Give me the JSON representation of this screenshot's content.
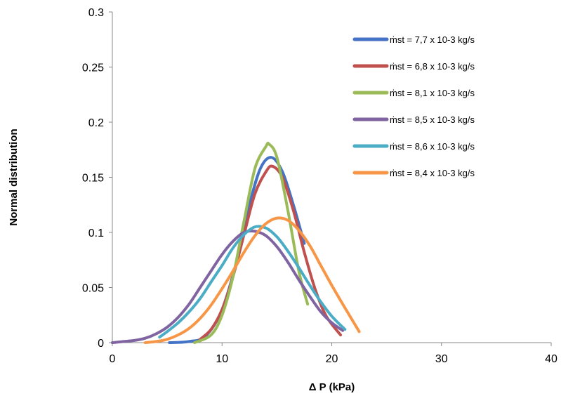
{
  "chart_data": {
    "type": "line",
    "title": "",
    "xlabel": "Δ P (kPa)",
    "ylabel": "Normal   distribution",
    "xlim": [
      0,
      40
    ],
    "ylim": [
      0,
      0.3
    ],
    "x_ticks": [
      "0",
      "10",
      "20",
      "30",
      "40"
    ],
    "y_ticks": [
      "0",
      "0.05",
      "0.1",
      "0.15",
      "0.2",
      "0.25",
      "0.3"
    ],
    "grid": false,
    "legend_position": "top-right",
    "series": [
      {
        "name": "ṁst  = 7,7 x 10-3 kg/s",
        "color": "#4472c4",
        "x": [
          5.2,
          7,
          8.5,
          10,
          11.5,
          12.5,
          13.5,
          14.5,
          15.5,
          16.5,
          17.5
        ],
        "y": [
          0,
          0.001,
          0.006,
          0.03,
          0.08,
          0.125,
          0.158,
          0.168,
          0.155,
          0.125,
          0.09
        ]
      },
      {
        "name": "ṁst  = 6,8 x 10-3 kg/s",
        "color": "#c0504d",
        "x": [
          8,
          9,
          10,
          11,
          12,
          13,
          14,
          14.6,
          15.5,
          16.5,
          17.5,
          18.5,
          19.5,
          20.8
        ],
        "y": [
          0.003,
          0.012,
          0.03,
          0.06,
          0.098,
          0.135,
          0.155,
          0.16,
          0.15,
          0.12,
          0.082,
          0.048,
          0.024,
          0.007
        ]
      },
      {
        "name": "ṁst  = 8,1 x 10-3 kg/s",
        "color": "#9bbb59",
        "x": [
          7.5,
          9,
          10,
          11,
          12,
          13,
          14,
          14.3,
          15,
          16,
          17,
          17.8
        ],
        "y": [
          0,
          0.007,
          0.025,
          0.06,
          0.11,
          0.158,
          0.178,
          0.18,
          0.168,
          0.12,
          0.065,
          0.035
        ]
      },
      {
        "name": "ṁst  = 8,5 x 10-3 kg/s",
        "color": "#8064a2",
        "x": [
          0,
          1,
          2,
          3,
          4,
          5,
          6,
          7,
          8,
          9,
          10,
          11,
          12,
          13,
          14,
          15,
          16,
          17,
          18,
          19,
          20,
          21
        ],
        "y": [
          0,
          0.001,
          0.002,
          0.004,
          0.008,
          0.014,
          0.023,
          0.035,
          0.05,
          0.065,
          0.08,
          0.092,
          0.1,
          0.101,
          0.097,
          0.087,
          0.073,
          0.057,
          0.042,
          0.028,
          0.018,
          0.011
        ]
      },
      {
        "name": "ṁst  = 8,6 x 10-3 kg/s",
        "color": "#4bacc6",
        "x": [
          4.3,
          5,
          6,
          7,
          8,
          9,
          10,
          11,
          12,
          13,
          14,
          15,
          16,
          17,
          18,
          19,
          20,
          21.2
        ],
        "y": [
          0.005,
          0.01,
          0.018,
          0.028,
          0.04,
          0.055,
          0.07,
          0.086,
          0.098,
          0.105,
          0.104,
          0.096,
          0.083,
          0.068,
          0.052,
          0.037,
          0.024,
          0.012
        ]
      },
      {
        "name": "ṁst  = 8,4 x 10-3 kg/s",
        "color": "#f79646",
        "x": [
          3,
          4,
          5,
          6,
          7,
          8,
          9,
          10,
          11,
          12,
          13,
          14,
          15,
          16,
          17,
          18,
          19,
          20,
          21,
          22.5
        ],
        "y": [
          0,
          0.001,
          0.003,
          0.007,
          0.013,
          0.022,
          0.034,
          0.049,
          0.065,
          0.082,
          0.097,
          0.108,
          0.113,
          0.111,
          0.102,
          0.088,
          0.07,
          0.052,
          0.035,
          0.01
        ]
      }
    ]
  }
}
